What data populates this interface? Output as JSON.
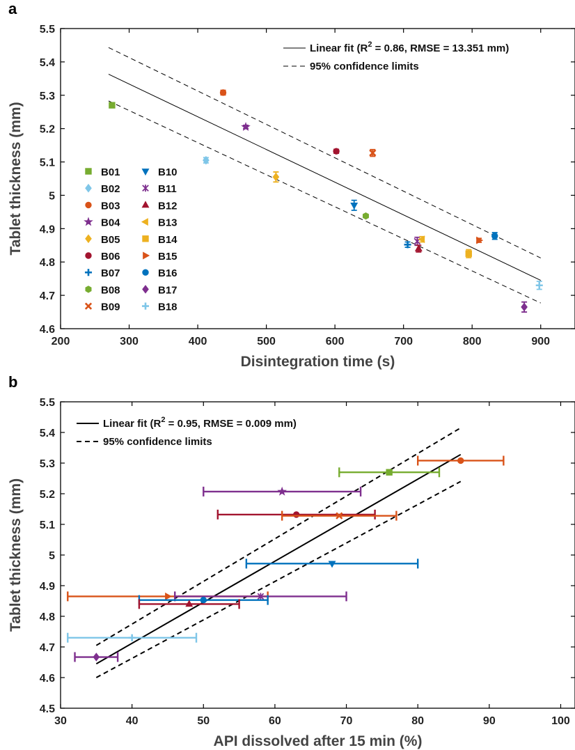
{
  "colors": {
    "B01": "#77ac30",
    "B02": "#7fc6e8",
    "B03": "#d95319",
    "B04": "#7e2f8e",
    "B05": "#edb120",
    "B06": "#a2142f",
    "B07": "#0072bd",
    "B08": "#77ac30",
    "B09": "#d95319",
    "B10": "#0072bd",
    "B11": "#7e2f8e",
    "B12": "#a2142f",
    "B13": "#edb120",
    "B14": "#edb120",
    "B15": "#d95319",
    "B16": "#0072bd",
    "B17": "#7e2f8e",
    "B18": "#7fc6e8"
  },
  "chart_data": [
    {
      "type": "scatter",
      "panel_label": "a",
      "xlabel": "Disintegration time (s)",
      "ylabel": "Tablet thickness (mm)",
      "xlim": [
        200,
        950
      ],
      "ylim": [
        4.6,
        5.5
      ],
      "xticks": [
        "200",
        "300",
        "400",
        "500",
        "600",
        "700",
        "800",
        "900"
      ],
      "yticks": [
        "4.6",
        "4.7",
        "4.8",
        "4.9",
        "5",
        "5.1",
        "5.2",
        "5.3",
        "5.4",
        "5.5"
      ],
      "grid": false,
      "fit_legend": [
        {
          "label_pre": "Linear fit (R",
          "label_sup": "2",
          "label_post": " = 0.86, RMSE = 13.351 mm)",
          "style": "solid"
        },
        {
          "label_pre": "95% confidence limits",
          "label_sup": "",
          "label_post": "",
          "style": "dashed"
        }
      ],
      "fit_line": {
        "x": [
          270,
          900
        ],
        "y": [
          5.363,
          4.745
        ]
      },
      "upper_confidence": {
        "x": [
          270,
          900
        ],
        "y": [
          5.443,
          4.812
        ]
      },
      "lower_confidence": {
        "x": [
          270,
          900
        ],
        "y": [
          5.283,
          4.677
        ]
      },
      "legend_placement": "left",
      "legend_entries": [
        "B01",
        "B02",
        "B03",
        "B04",
        "B05",
        "B06",
        "B07",
        "B08",
        "B09",
        "B10",
        "B11",
        "B12",
        "B13",
        "B14",
        "B15",
        "B16",
        "B17",
        "B18"
      ],
      "points": [
        {
          "name": "B01",
          "x": 275,
          "y": 5.27,
          "err": 0.006,
          "marker": "square"
        },
        {
          "name": "B02",
          "x": 412,
          "y": 5.105,
          "err": 0.008,
          "marker": "diamond"
        },
        {
          "name": "B03",
          "x": 437,
          "y": 5.308,
          "err": 0.007,
          "marker": "circle"
        },
        {
          "name": "B04",
          "x": 470,
          "y": 5.205,
          "err": 0.005,
          "marker": "star"
        },
        {
          "name": "B05",
          "x": 514,
          "y": 5.055,
          "err": 0.015,
          "marker": "diamond"
        },
        {
          "name": "B06",
          "x": 602,
          "y": 5.132,
          "err": 0.006,
          "marker": "circle"
        },
        {
          "name": "B07",
          "x": 706,
          "y": 4.852,
          "err": 0.008,
          "marker": "plus"
        },
        {
          "name": "B08",
          "x": 645,
          "y": 4.938,
          "err": 0.005,
          "marker": "hexagon"
        },
        {
          "name": "B09",
          "x": 655,
          "y": 5.127,
          "err": 0.01,
          "marker": "x"
        },
        {
          "name": "B10",
          "x": 628,
          "y": 4.97,
          "err": 0.015,
          "marker": "triangle-down"
        },
        {
          "name": "B11",
          "x": 720,
          "y": 4.862,
          "err": 0.012,
          "marker": "asterisk"
        },
        {
          "name": "B12",
          "x": 722,
          "y": 4.84,
          "err": 0.01,
          "marker": "triangle-up"
        },
        {
          "name": "B13",
          "x": 727,
          "y": 4.868,
          "err": 0.008,
          "marker": "triangle-left"
        },
        {
          "name": "B14",
          "x": 795,
          "y": 4.825,
          "err": 0.012,
          "marker": "square"
        },
        {
          "name": "B15",
          "x": 810,
          "y": 4.865,
          "err": 0.006,
          "marker": "triangle-right"
        },
        {
          "name": "B16",
          "x": 833,
          "y": 4.878,
          "err": 0.01,
          "marker": "circle"
        },
        {
          "name": "B17",
          "x": 876,
          "y": 4.665,
          "err": 0.015,
          "marker": "diamond"
        },
        {
          "name": "B18",
          "x": 898,
          "y": 4.73,
          "err": 0.012,
          "marker": "plus"
        }
      ]
    },
    {
      "type": "scatter",
      "panel_label": "b",
      "xlabel": "API dissolved after 15 min (%)",
      "ylabel": "Tablet thickness (mm)",
      "xlim": [
        30,
        102
      ],
      "ylim": [
        4.5,
        5.5
      ],
      "xticks": [
        "30",
        "40",
        "50",
        "60",
        "70",
        "80",
        "90",
        "100"
      ],
      "yticks": [
        "4.5",
        "4.6",
        "4.7",
        "4.8",
        "4.9",
        "5",
        "5.1",
        "5.2",
        "5.3",
        "5.4",
        "5.5"
      ],
      "grid": false,
      "fit_legend": [
        {
          "label_pre": "Linear fit (R",
          "label_sup": "2",
          "label_post": " = 0.95, RMSE = 0.009 mm)",
          "style": "solid"
        },
        {
          "label_pre": "95% confidence limits",
          "label_sup": "",
          "label_post": "",
          "style": "dashed"
        }
      ],
      "fit_line": {
        "x": [
          35,
          86
        ],
        "y": [
          4.645,
          5.328
        ]
      },
      "upper_confidence": {
        "x": [
          35,
          86
        ],
        "y": [
          4.705,
          5.415
        ]
      },
      "lower_confidence": {
        "x": [
          35,
          86
        ],
        "y": [
          4.6,
          5.24
        ]
      },
      "points": [
        {
          "name": "B01",
          "x": 76,
          "y": 5.27,
          "xerr": [
            69,
            83
          ],
          "marker": "square"
        },
        {
          "name": "B03",
          "x": 86,
          "y": 5.308,
          "xerr": [
            80,
            92
          ],
          "marker": "circle"
        },
        {
          "name": "B04",
          "x": 61,
          "y": 5.207,
          "xerr": [
            50,
            72
          ],
          "marker": "star"
        },
        {
          "name": "B06",
          "x": 63,
          "y": 5.132,
          "xerr": [
            52,
            74
          ],
          "marker": "circle"
        },
        {
          "name": "B09",
          "x": 69,
          "y": 5.128,
          "xerr": [
            61,
            77
          ],
          "marker": "x"
        },
        {
          "name": "B10",
          "x": 68,
          "y": 4.972,
          "xerr": [
            56,
            80
          ],
          "marker": "triangle-down"
        },
        {
          "name": "B15",
          "x": 45,
          "y": 4.865,
          "xerr": [
            31,
            59
          ],
          "marker": "triangle-right"
        },
        {
          "name": "B11",
          "x": 58,
          "y": 4.865,
          "xerr": [
            46,
            70
          ],
          "marker": "asterisk"
        },
        {
          "name": "B16",
          "x": 50,
          "y": 4.853,
          "xerr": [
            41,
            59
          ],
          "marker": "circle"
        },
        {
          "name": "B12",
          "x": 48,
          "y": 4.84,
          "xerr": [
            41,
            55
          ],
          "marker": "triangle-up"
        },
        {
          "name": "B18",
          "x": 40,
          "y": 4.73,
          "xerr": [
            31,
            49
          ],
          "marker": "plus"
        },
        {
          "name": "B17",
          "x": 35,
          "y": 4.667,
          "xerr": [
            32,
            38
          ],
          "marker": "diamond"
        }
      ]
    }
  ]
}
